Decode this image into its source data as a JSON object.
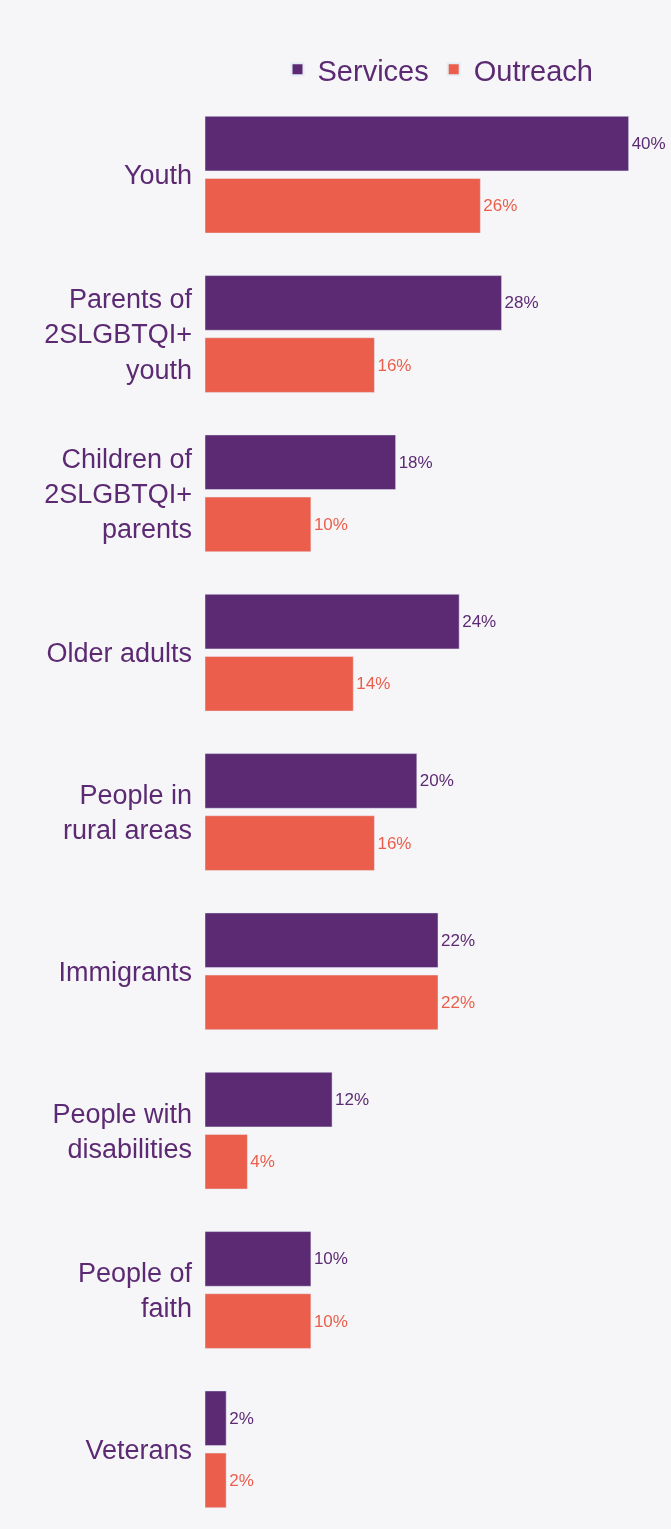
{
  "chart_data": {
    "type": "bar",
    "orientation": "horizontal",
    "legend": "top",
    "categories": [
      "Youth",
      "Parents of 2SLGBTQI+ youth",
      "Children of 2SLGBTQI+ parents",
      "Older adults",
      "People in rural areas",
      "Immigrants",
      "People with disabilities",
      "People of faith",
      "Veterans"
    ],
    "series": [
      {
        "name": "Services",
        "color": "#5c2a73",
        "values": [
          40,
          28,
          18,
          24,
          20,
          22,
          12,
          10,
          2
        ],
        "value_labels": [
          "40%",
          "28%",
          "18%",
          "24%",
          "20%",
          "22%",
          "12%",
          "10%",
          "2%"
        ]
      },
      {
        "name": "Outreach",
        "color": "#eb5e4b",
        "values": [
          26,
          16,
          10,
          14,
          16,
          22,
          4,
          10,
          2
        ],
        "value_labels": [
          "26%",
          "16%",
          "10%",
          "14%",
          "16%",
          "22%",
          "4%",
          "10%",
          "2%"
        ]
      }
    ]
  }
}
